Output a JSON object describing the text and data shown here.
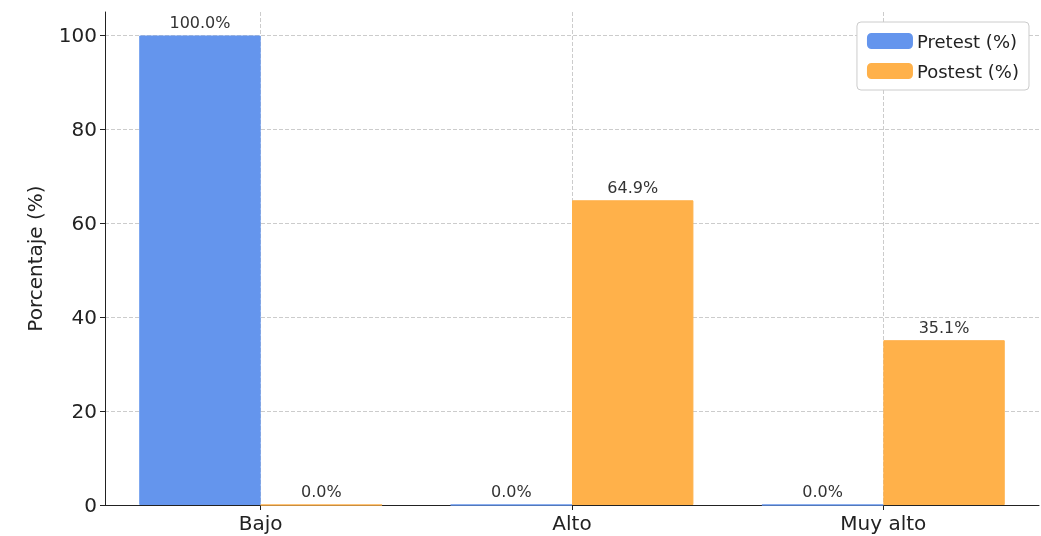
{
  "chart_data": {
    "type": "bar",
    "ylabel": "Porcentaje (%)",
    "categories": [
      "Bajo",
      "Alto",
      "Muy alto"
    ],
    "series": [
      {
        "name": "Pretest (%)",
        "color": "#6495ed",
        "values": [
          100.0,
          0.0,
          0.0
        ],
        "value_labels": [
          "100.0%",
          "0.0%",
          "0.0%"
        ]
      },
      {
        "name": "Postest (%)",
        "color": "#ffb14a",
        "values": [
          0.0,
          64.9,
          35.1
        ],
        "value_labels": [
          "0.0%",
          "64.9%",
          "35.1%"
        ]
      }
    ],
    "ylim": [
      0,
      105
    ],
    "yticks": [
      0,
      20,
      40,
      60,
      80,
      100
    ],
    "grid": true,
    "legend": "top right"
  }
}
